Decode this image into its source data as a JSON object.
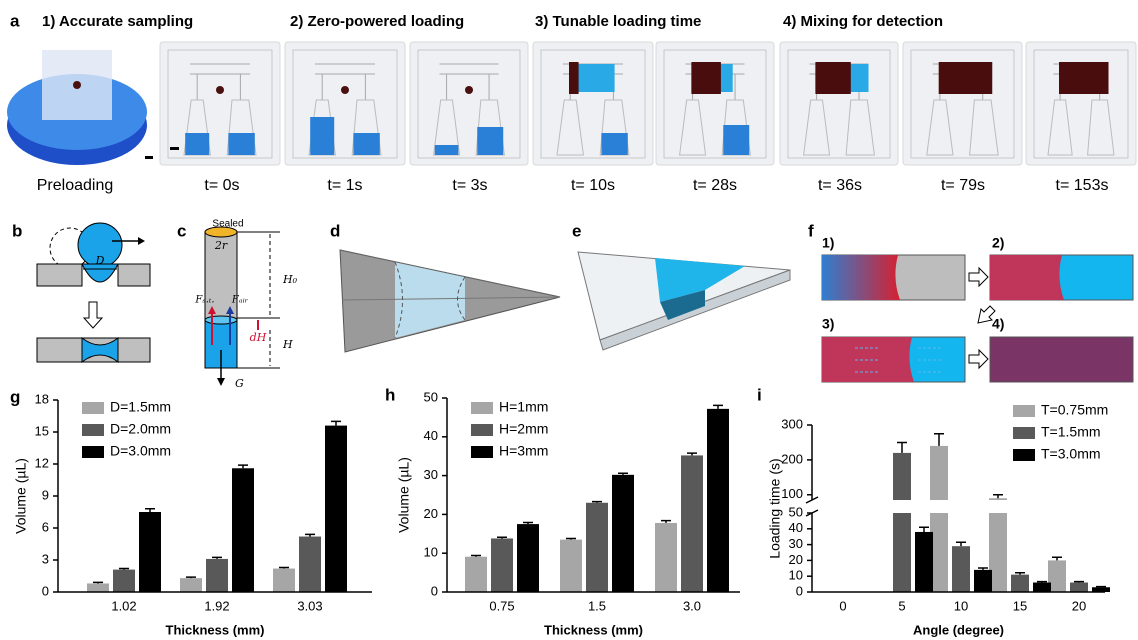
{
  "panel_a": {
    "letter": "a",
    "headings": [
      "1) Accurate sampling",
      "2) Zero-powered loading",
      "3) Tunable loading time",
      "4) Mixing for detection"
    ],
    "captions": [
      "Preloading",
      "t= 0s",
      "t= 1s",
      "t= 3s",
      "t= 10s",
      "t= 28s",
      "t= 36s",
      "t= 79s",
      "t= 153s"
    ]
  },
  "panel_b": {
    "letter": "b",
    "diameter": "D"
  },
  "panel_c": {
    "letter": "c",
    "sealed": "Sealed",
    "radius": "2r",
    "height0": "H₀",
    "surface_force": "Fₛ.ₜ.",
    "air_force": "Fₐᵢᵣ",
    "dh": "dH",
    "height": "H",
    "gravity": "G"
  },
  "panel_d": {
    "letter": "d"
  },
  "panel_e": {
    "letter": "e"
  },
  "panel_f": {
    "letter": "f",
    "steps": [
      "1)",
      "2)",
      "3)",
      "4)"
    ]
  },
  "chart_data": [
    {
      "type": "bar",
      "label": "g",
      "xlabel": "Thickness (mm)",
      "ylabel": "Volume (µL)",
      "categories": [
        "1.02",
        "1.92",
        "3.03"
      ],
      "ylim": [
        0,
        18
      ],
      "yticks": [
        0,
        3,
        6,
        9,
        12,
        15,
        18
      ],
      "legend": "upper left",
      "series": [
        {
          "name": "D=1.5mm",
          "color": "#a6a6a6",
          "values": [
            0.8,
            1.3,
            2.2
          ],
          "errors": [
            0.1,
            0.1,
            0.1
          ]
        },
        {
          "name": "D=2.0mm",
          "color": "#595959",
          "values": [
            2.1,
            3.1,
            5.2
          ],
          "errors": [
            0.1,
            0.15,
            0.2
          ]
        },
        {
          "name": "D=3.0mm",
          "color": "#000000",
          "values": [
            7.5,
            11.6,
            15.6
          ],
          "errors": [
            0.3,
            0.3,
            0.4
          ]
        }
      ]
    },
    {
      "type": "bar",
      "label": "h",
      "xlabel": "Thickness (mm)",
      "ylabel": "Volume (µL)",
      "categories": [
        "0.75",
        "1.5",
        "3.0"
      ],
      "ylim": [
        0,
        50
      ],
      "yticks": [
        0,
        10,
        20,
        30,
        40,
        50
      ],
      "legend": "upper left",
      "series": [
        {
          "name": "H=1mm",
          "color": "#a6a6a6",
          "values": [
            9.1,
            13.5,
            17.8
          ],
          "errors": [
            0.3,
            0.3,
            0.6
          ]
        },
        {
          "name": "H=2mm",
          "color": "#595959",
          "values": [
            13.8,
            23,
            35.2
          ],
          "errors": [
            0.3,
            0.3,
            0.6
          ]
        },
        {
          "name": "H=3mm",
          "color": "#000000",
          "values": [
            17.5,
            30.2,
            47.2
          ],
          "errors": [
            0.4,
            0.4,
            0.9
          ]
        }
      ]
    },
    {
      "type": "bar",
      "label": "i",
      "xlabel": "Angle (degree)",
      "ylabel": "Loading time (s)",
      "categories": [
        "0",
        "5",
        "10",
        "15",
        "20"
      ],
      "ylim": [
        0,
        300
      ],
      "ybreak": [
        50,
        85
      ],
      "yticks": [
        0,
        10,
        20,
        30,
        40,
        50,
        100,
        200,
        300
      ],
      "legend": "upper right",
      "series": [
        {
          "name": "T=0.75mm",
          "color": "#a6a6a6",
          "values": [
            null,
            null,
            240,
            90,
            20
          ],
          "errors": [
            null,
            null,
            35,
            10,
            2
          ]
        },
        {
          "name": "T=1.5mm",
          "color": "#595959",
          "values": [
            null,
            220,
            29,
            11,
            6
          ],
          "errors": [
            null,
            30,
            2.5,
            1.2,
            0.6
          ]
        },
        {
          "name": "T=3.0mm",
          "color": "#000000",
          "values": [
            null,
            38,
            14,
            6,
            3
          ],
          "errors": [
            null,
            3,
            1.2,
            0.6,
            0.4
          ]
        }
      ]
    }
  ]
}
